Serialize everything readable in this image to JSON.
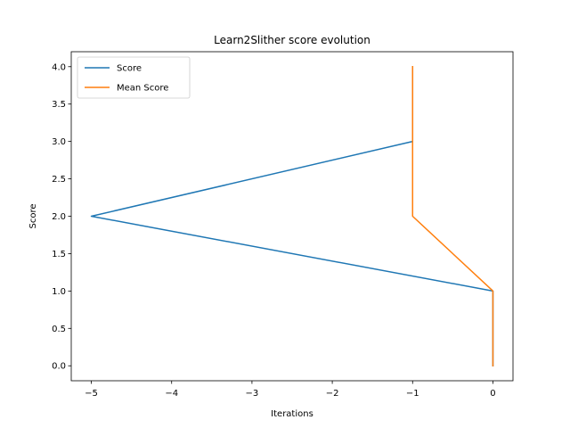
{
  "chart_data": {
    "type": "line",
    "title": "Learn2Slither score evolution",
    "xlabel": "Iterations",
    "ylabel": "Score",
    "xlim": [
      -5.25,
      0.25
    ],
    "ylim": [
      -0.2,
      4.2
    ],
    "xticks": [
      -5,
      -4,
      -3,
      -2,
      -1,
      0
    ],
    "xtick_labels": [
      "−5",
      "−4",
      "−3",
      "−2",
      "−1",
      "0"
    ],
    "yticks": [
      0.0,
      0.5,
      1.0,
      1.5,
      2.0,
      2.5,
      3.0,
      3.5,
      4.0
    ],
    "ytick_labels": [
      "0.0",
      "0.5",
      "1.0",
      "1.5",
      "2.0",
      "2.5",
      "3.0",
      "3.5",
      "4.0"
    ],
    "grid": false,
    "legend_position": "top-left",
    "series": [
      {
        "name": "Score",
        "color": "#1f77b4",
        "x": [
          0,
          0,
          -5,
          -1,
          -1
        ],
        "y": [
          0,
          1,
          2,
          3,
          4
        ]
      },
      {
        "name": "Mean Score",
        "color": "#ff7f0e",
        "x": [
          0,
          0,
          -1,
          -1,
          -1
        ],
        "y": [
          0,
          1,
          2,
          3,
          4
        ]
      }
    ]
  }
}
